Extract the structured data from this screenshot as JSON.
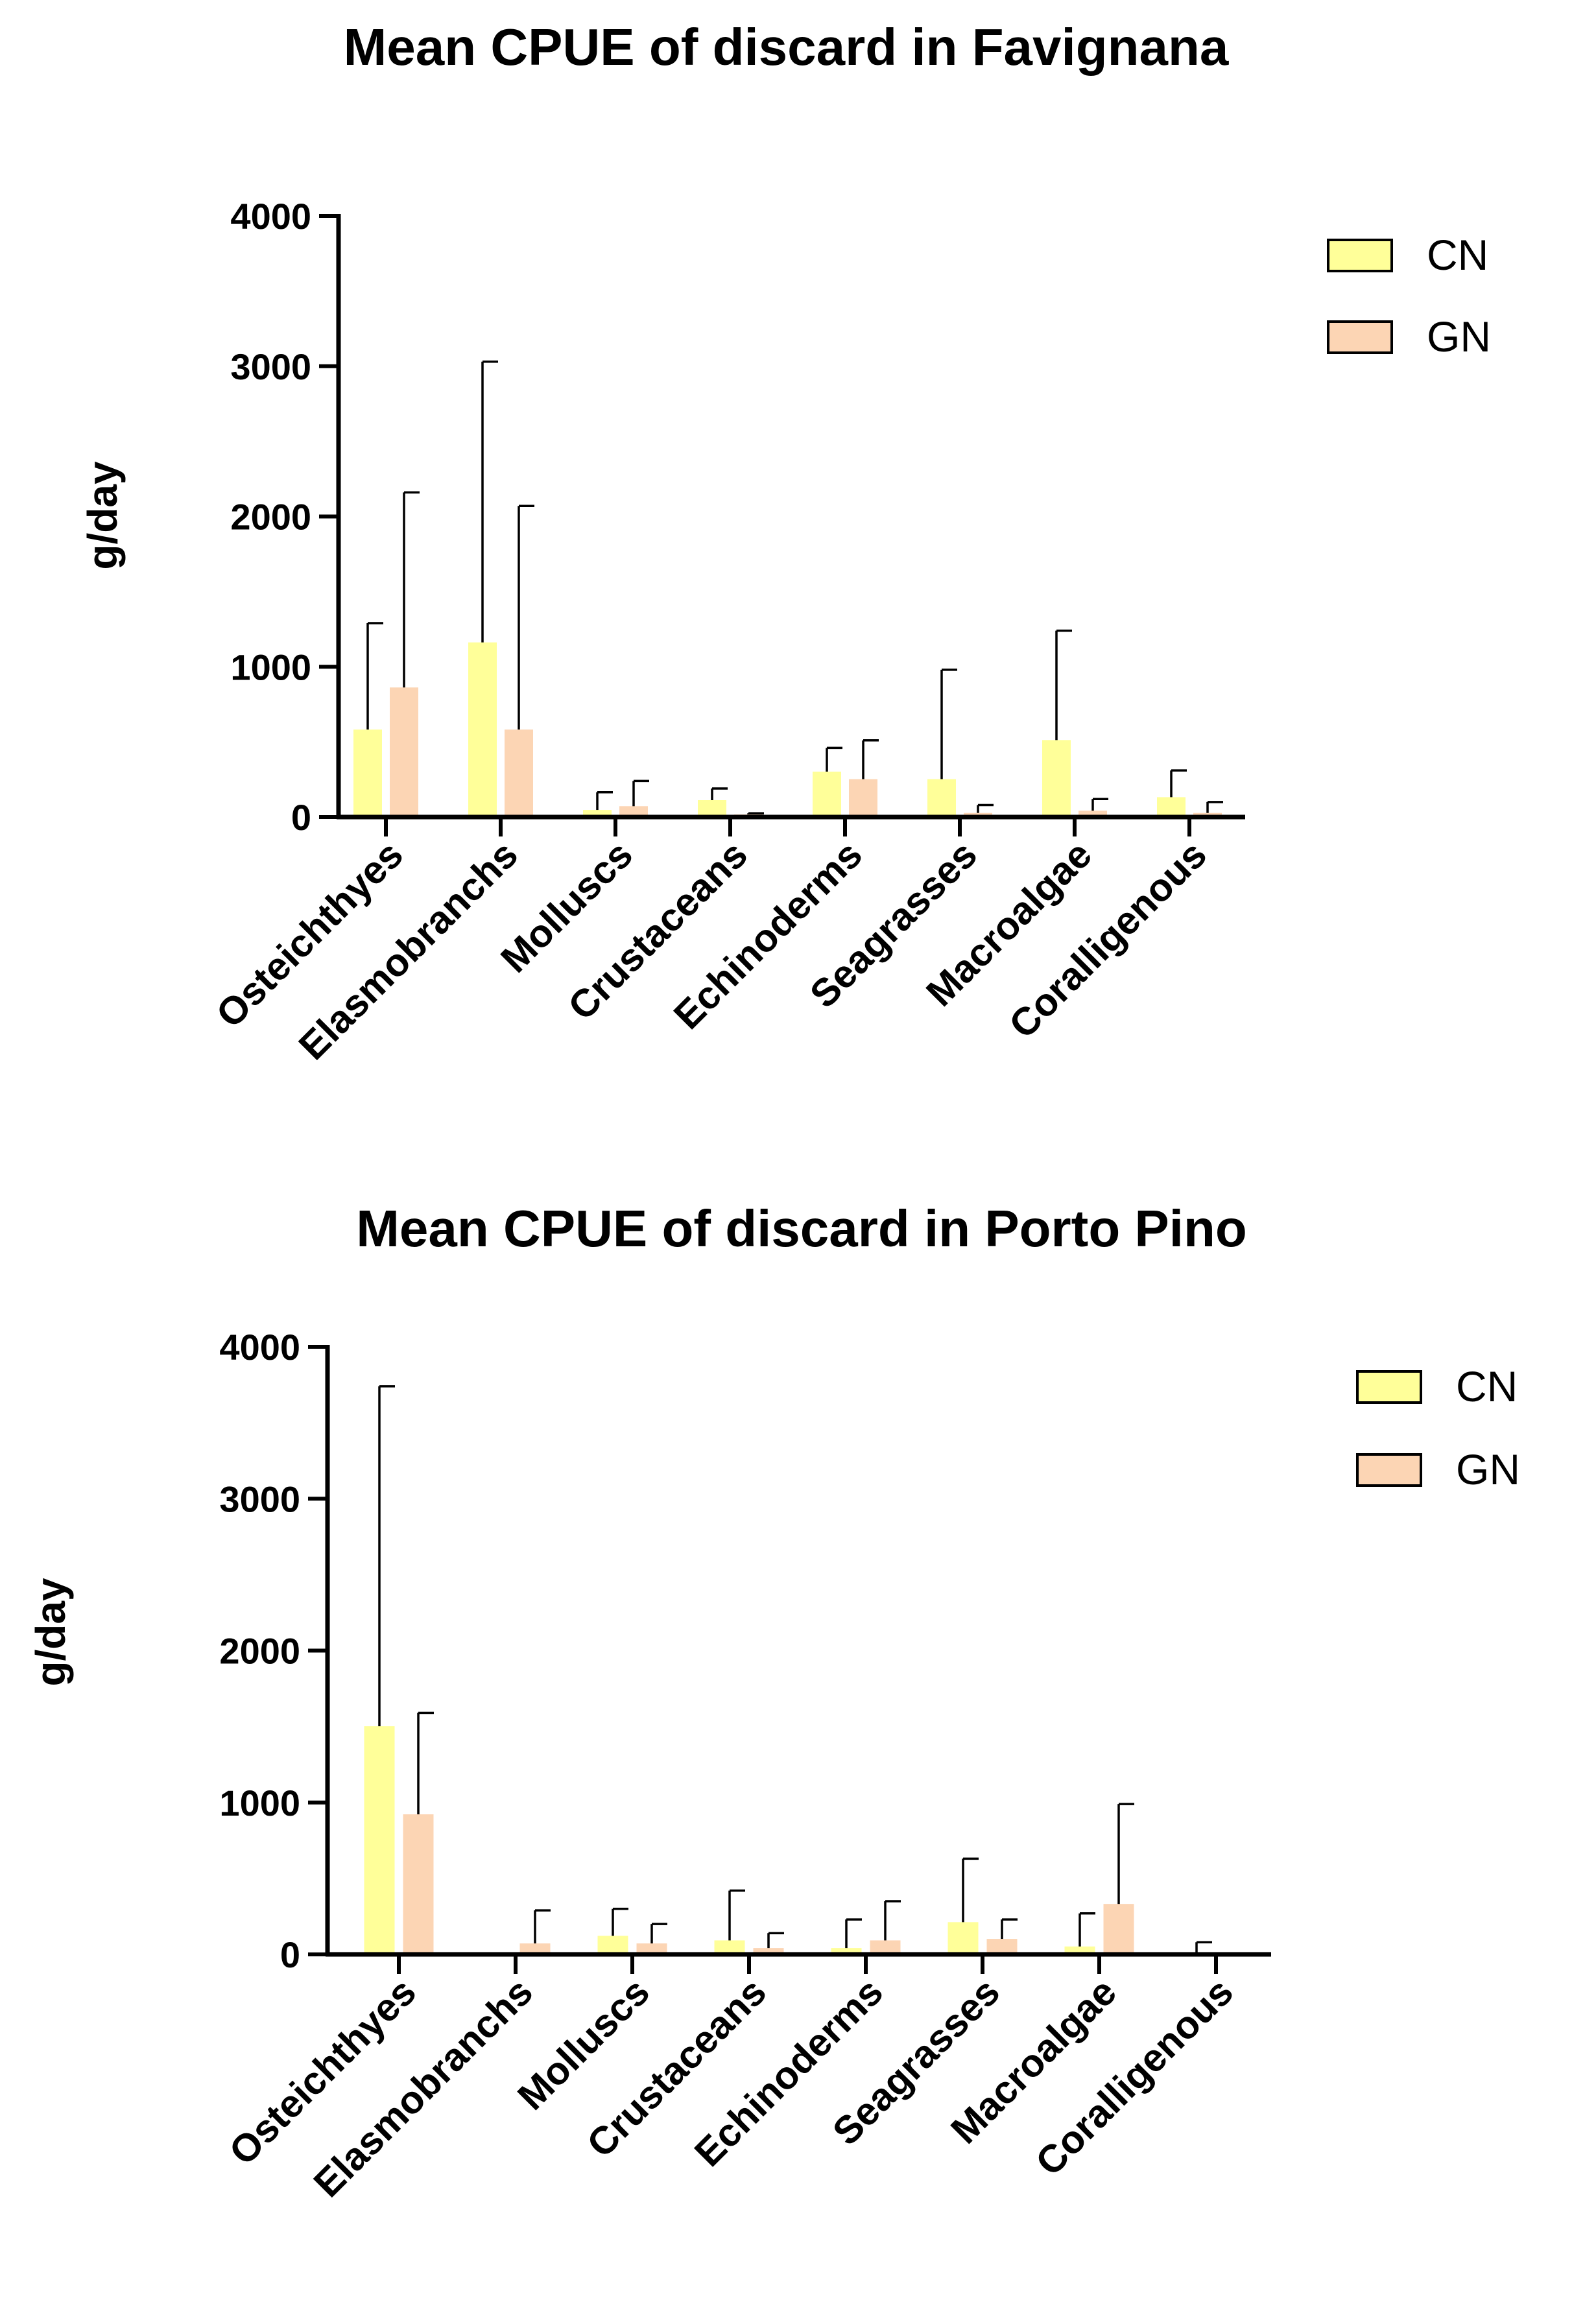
{
  "chart_data": [
    {
      "type": "bar",
      "title": "Mean CPUE  of discard in Favignana",
      "xlabel": "",
      "ylabel": "g/day",
      "ylim": [
        0,
        4000
      ],
      "yticks": [
        "0",
        "1000",
        "2000",
        "3000",
        "4000"
      ],
      "categories": [
        "Osteichthyes",
        "Elasmobranchs",
        "Molluscs",
        "Crustaceans",
        "Echinoderms",
        "Seagrasses",
        "Macroalgae",
        "Coralligenous"
      ],
      "series": [
        {
          "name": "CN",
          "color": "#ffff99",
          "values": [
            580,
            1160,
            45,
            110,
            300,
            250,
            510,
            130
          ],
          "error": [
            710,
            1870,
            120,
            80,
            160,
            730,
            730,
            180
          ]
        },
        {
          "name": "GN",
          "color": "#fcd5b4",
          "values": [
            860,
            580,
            70,
            15,
            250,
            25,
            40,
            25
          ],
          "error": [
            1300,
            1490,
            170,
            10,
            260,
            55,
            80,
            75
          ]
        }
      ],
      "legend": [
        "CN",
        "GN"
      ],
      "legend_position": "top-right"
    },
    {
      "type": "bar",
      "title": "Mean CPUE of discard in Porto Pino",
      "xlabel": "",
      "ylabel": "g/day",
      "ylim": [
        0,
        4000
      ],
      "yticks": [
        "0",
        "1000",
        "2000",
        "3000",
        "4000"
      ],
      "categories": [
        "Osteichthyes",
        "Elasmobranchs",
        "Molluscs",
        "Crustaceans",
        "Echinoderms",
        "Seagrasses",
        "Macroalgae",
        "Coralligenous"
      ],
      "series": [
        {
          "name": "CN",
          "color": "#ffff99",
          "values": [
            1500,
            0,
            120,
            90,
            40,
            210,
            50,
            5
          ],
          "error": [
            2240,
            0,
            180,
            330,
            190,
            420,
            220,
            75
          ]
        },
        {
          "name": "GN",
          "color": "#fcd5b4",
          "values": [
            920,
            70,
            70,
            40,
            90,
            100,
            330,
            0
          ],
          "error": [
            670,
            220,
            130,
            100,
            260,
            130,
            660,
            0
          ]
        }
      ],
      "legend": [
        "CN",
        "GN"
      ],
      "legend_position": "top-right"
    }
  ]
}
